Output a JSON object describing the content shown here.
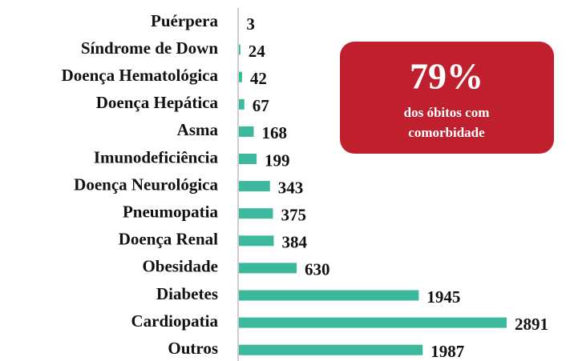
{
  "chart_data": {
    "type": "barh",
    "categories": [
      "Puérpera",
      "Síndrome de Down",
      "Doença Hematológica",
      "Doença Hepática",
      "Asma",
      "Imunodeficiência",
      "Doença Neurológica",
      "Pneumopatia",
      "Doença Renal",
      "Obesidade",
      "Diabetes",
      "Cardiopatia",
      "Outros"
    ],
    "values": [
      3,
      24,
      42,
      67,
      168,
      199,
      343,
      375,
      384,
      630,
      1945,
      2891,
      1987
    ],
    "color": "#3cb89d",
    "annotation": {
      "headline": "79%",
      "lines": [
        "dos óbitos com",
        "comorbidade"
      ],
      "color": "#c0202e"
    }
  }
}
